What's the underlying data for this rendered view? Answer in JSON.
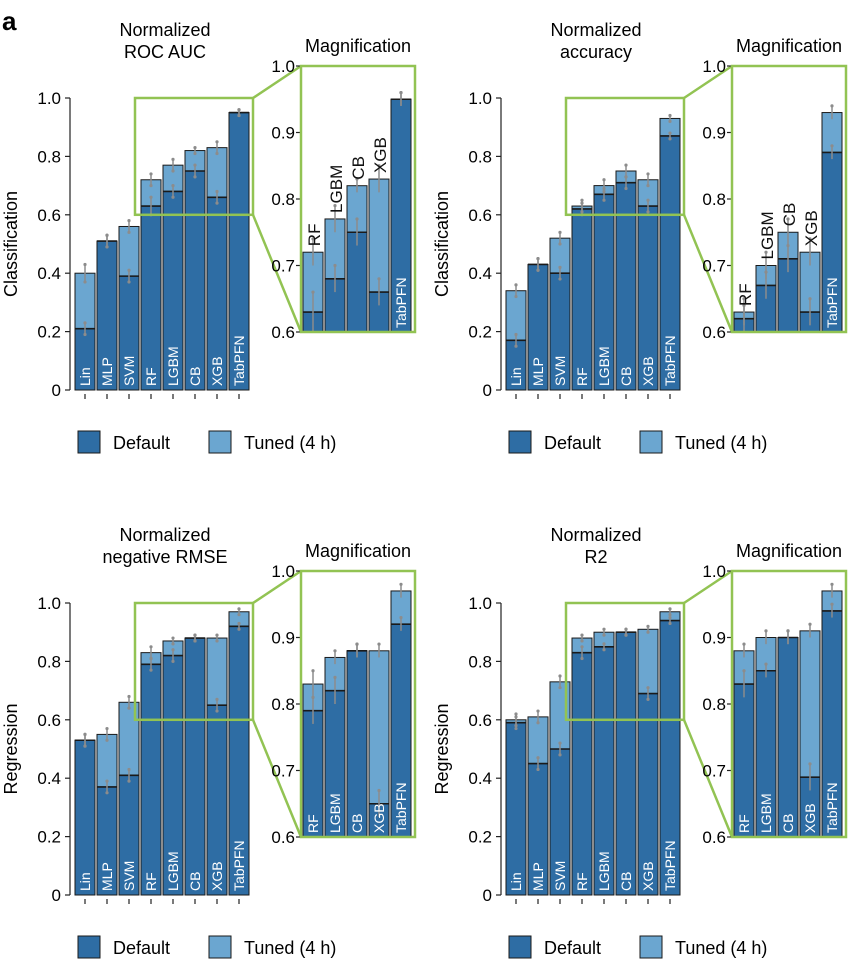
{
  "panel_label": "a",
  "colors": {
    "default": "#2e6da4",
    "tuned": "#6ba6d0",
    "frame": "#92c353",
    "error": "#8c8c8c"
  },
  "legend": {
    "default": "Default",
    "tuned": "Tuned (4 h)"
  },
  "magnification_title": "Magnification",
  "chart_data": [
    {
      "type": "bar",
      "title_lines": [
        "Normalized",
        "ROC AUC"
      ],
      "ylabel": "Classification",
      "ylim": [
        0,
        1.0
      ],
      "yticks": [
        "0",
        "0.2",
        "0.4",
        "0.6",
        "0.8",
        "1.0"
      ],
      "categories": [
        "Lin",
        "MLP",
        "SVM",
        "RF",
        "LGBM",
        "CB",
        "XGB",
        "TabPFN"
      ],
      "series": [
        {
          "name": "Default",
          "values": [
            0.21,
            0.51,
            0.39,
            0.63,
            0.68,
            0.75,
            0.66,
            0.95
          ],
          "err": [
            0.02,
            0.02,
            0.02,
            0.03,
            0.02,
            0.02,
            0.02,
            0.01
          ]
        },
        {
          "name": "Tuned (4 h)",
          "values": [
            0.4,
            0.51,
            0.56,
            0.72,
            0.77,
            0.82,
            0.83,
            0.95
          ],
          "err": [
            0.03,
            0.02,
            0.02,
            0.02,
            0.02,
            0.01,
            0.02,
            0.01
          ]
        }
      ],
      "inset": {
        "ylim": [
          0.6,
          1.0
        ],
        "yticks": [
          "0.6",
          "0.7",
          "0.8",
          "0.9",
          "1.0"
        ],
        "categories": [
          "RF",
          "LGBM",
          "CB",
          "XGB",
          "TabPFN"
        ],
        "outside_labels": [
          true,
          true,
          true,
          true,
          false
        ]
      }
    },
    {
      "type": "bar",
      "title_lines": [
        "Normalized",
        "accuracy"
      ],
      "ylabel": "Classification",
      "ylim": [
        0,
        1.0
      ],
      "yticks": [
        "0",
        "0.2",
        "0.4",
        "0.6",
        "0.8",
        "1.0"
      ],
      "categories": [
        "Lin",
        "MLP",
        "SVM",
        "RF",
        "LGBM",
        "CB",
        "XGB",
        "TabPFN"
      ],
      "series": [
        {
          "name": "Default",
          "values": [
            0.17,
            0.43,
            0.4,
            0.62,
            0.67,
            0.71,
            0.63,
            0.87
          ],
          "err": [
            0.02,
            0.02,
            0.02,
            0.02,
            0.02,
            0.02,
            0.02,
            0.01
          ]
        },
        {
          "name": "Tuned (4 h)",
          "values": [
            0.34,
            0.43,
            0.52,
            0.63,
            0.7,
            0.75,
            0.72,
            0.93
          ],
          "err": [
            0.02,
            0.02,
            0.02,
            0.02,
            0.02,
            0.02,
            0.02,
            0.01
          ]
        }
      ],
      "inset": {
        "ylim": [
          0.6,
          1.0
        ],
        "yticks": [
          "0.6",
          "0.7",
          "0.8",
          "0.9",
          "1.0"
        ],
        "categories": [
          "RF",
          "LGBM",
          "CB",
          "XGB",
          "TabPFN"
        ],
        "outside_labels": [
          true,
          true,
          true,
          true,
          false
        ]
      }
    },
    {
      "type": "bar",
      "title_lines": [
        "Normalized",
        "negative RMSE"
      ],
      "ylabel": "Regression",
      "ylim": [
        0,
        1.0
      ],
      "yticks": [
        "0",
        "0.2",
        "0.4",
        "0.6",
        "0.8",
        "1.0"
      ],
      "categories": [
        "Lin",
        "MLP",
        "SVM",
        "RF",
        "LGBM",
        "CB",
        "XGB",
        "TabPFN"
      ],
      "series": [
        {
          "name": "Default",
          "values": [
            0.53,
            0.37,
            0.41,
            0.79,
            0.82,
            0.88,
            0.65,
            0.92
          ],
          "err": [
            0.02,
            0.02,
            0.02,
            0.02,
            0.02,
            0.01,
            0.02,
            0.01
          ]
        },
        {
          "name": "Tuned (4 h)",
          "values": [
            0.53,
            0.55,
            0.66,
            0.83,
            0.87,
            0.88,
            0.88,
            0.97
          ],
          "err": [
            0.02,
            0.02,
            0.02,
            0.02,
            0.01,
            0.01,
            0.01,
            0.01
          ]
        }
      ],
      "inset": {
        "ylim": [
          0.6,
          1.0
        ],
        "yticks": [
          "0.6",
          "0.7",
          "0.8",
          "0.9",
          "1.0"
        ],
        "categories": [
          "RF",
          "LGBM",
          "CB",
          "XGB",
          "TabPFN"
        ],
        "outside_labels": [
          false,
          false,
          false,
          false,
          false
        ]
      }
    },
    {
      "type": "bar",
      "title_lines": [
        "Normalized",
        "R2"
      ],
      "ylabel": "Regression",
      "ylim": [
        0,
        1.0
      ],
      "yticks": [
        "0",
        "0.2",
        "0.4",
        "0.6",
        "0.8",
        "1.0"
      ],
      "categories": [
        "Lin",
        "MLP",
        "SVM",
        "RF",
        "LGBM",
        "CB",
        "XGB",
        "TabPFN"
      ],
      "series": [
        {
          "name": "Default",
          "values": [
            0.59,
            0.45,
            0.5,
            0.83,
            0.85,
            0.9,
            0.69,
            0.94
          ],
          "err": [
            0.02,
            0.02,
            0.02,
            0.02,
            0.01,
            0.01,
            0.02,
            0.01
          ]
        },
        {
          "name": "Tuned (4 h)",
          "values": [
            0.6,
            0.61,
            0.73,
            0.88,
            0.9,
            0.9,
            0.91,
            0.97
          ],
          "err": [
            0.02,
            0.02,
            0.02,
            0.01,
            0.01,
            0.01,
            0.01,
            0.01
          ]
        }
      ],
      "inset": {
        "ylim": [
          0.6,
          1.0
        ],
        "yticks": [
          "0.6",
          "0.7",
          "0.8",
          "0.9",
          "1.0"
        ],
        "categories": [
          "RF",
          "LGBM",
          "CB",
          "XGB",
          "TabPFN"
        ],
        "outside_labels": [
          false,
          false,
          false,
          false,
          false
        ]
      }
    }
  ]
}
